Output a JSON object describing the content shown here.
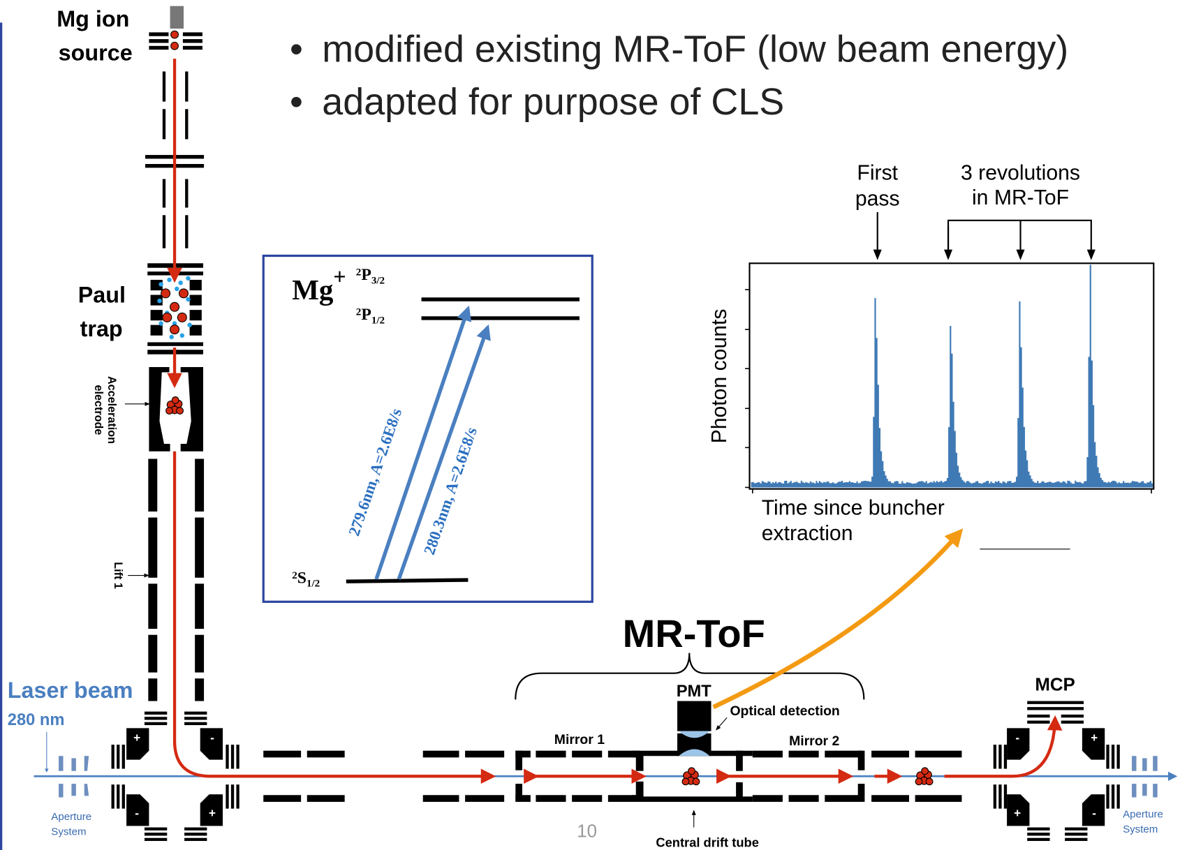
{
  "source_label": [
    "Mg ion",
    "source"
  ],
  "bullets": [
    "modified existing MR-ToF (low beam energy)",
    "adapted for purpose of CLS"
  ],
  "trap_label": [
    "Paul",
    "trap"
  ],
  "electrode_label": [
    "Acceleration",
    "electrode"
  ],
  "lift_label": "Lift 1",
  "laser_label": "Laser beam",
  "laser_wavelength": "280 nm",
  "aperture_left": [
    "Aperture",
    "System"
  ],
  "aperture_right": [
    "Aperture",
    "System"
  ],
  "level_scheme": {
    "ion": "Mg",
    "charge": "+",
    "levels": [
      {
        "sup": "2",
        "term": "P",
        "sub": "3/2"
      },
      {
        "sup": "2",
        "term": "P",
        "sub": "1/2"
      },
      {
        "sup": "2",
        "term": "S",
        "sub": "1/2"
      }
    ],
    "transitions": [
      "279.6nm, A=2.6E8/s",
      "280.3nm, A=2.6E8/s"
    ]
  },
  "spectrum": {
    "annotations": [
      [
        "First",
        "pass"
      ],
      [
        "3 revolutions",
        "in MR-ToF"
      ]
    ],
    "y_label": "Photon counts",
    "x_label": [
      "Time since buncher",
      "extraction"
    ]
  },
  "mrtof": {
    "title": "MR-ToF",
    "detector": "PMT",
    "detection": "Optical detection",
    "mirrors": [
      "Mirror 1",
      "Mirror 2"
    ],
    "drift_tube": "Central drift tube"
  },
  "mcp": "MCP",
  "deflector_signs_left": [
    "+",
    "-",
    "-",
    "+"
  ],
  "deflector_signs_right": [
    "-",
    "+",
    "+",
    "-"
  ],
  "page_number": "10"
}
